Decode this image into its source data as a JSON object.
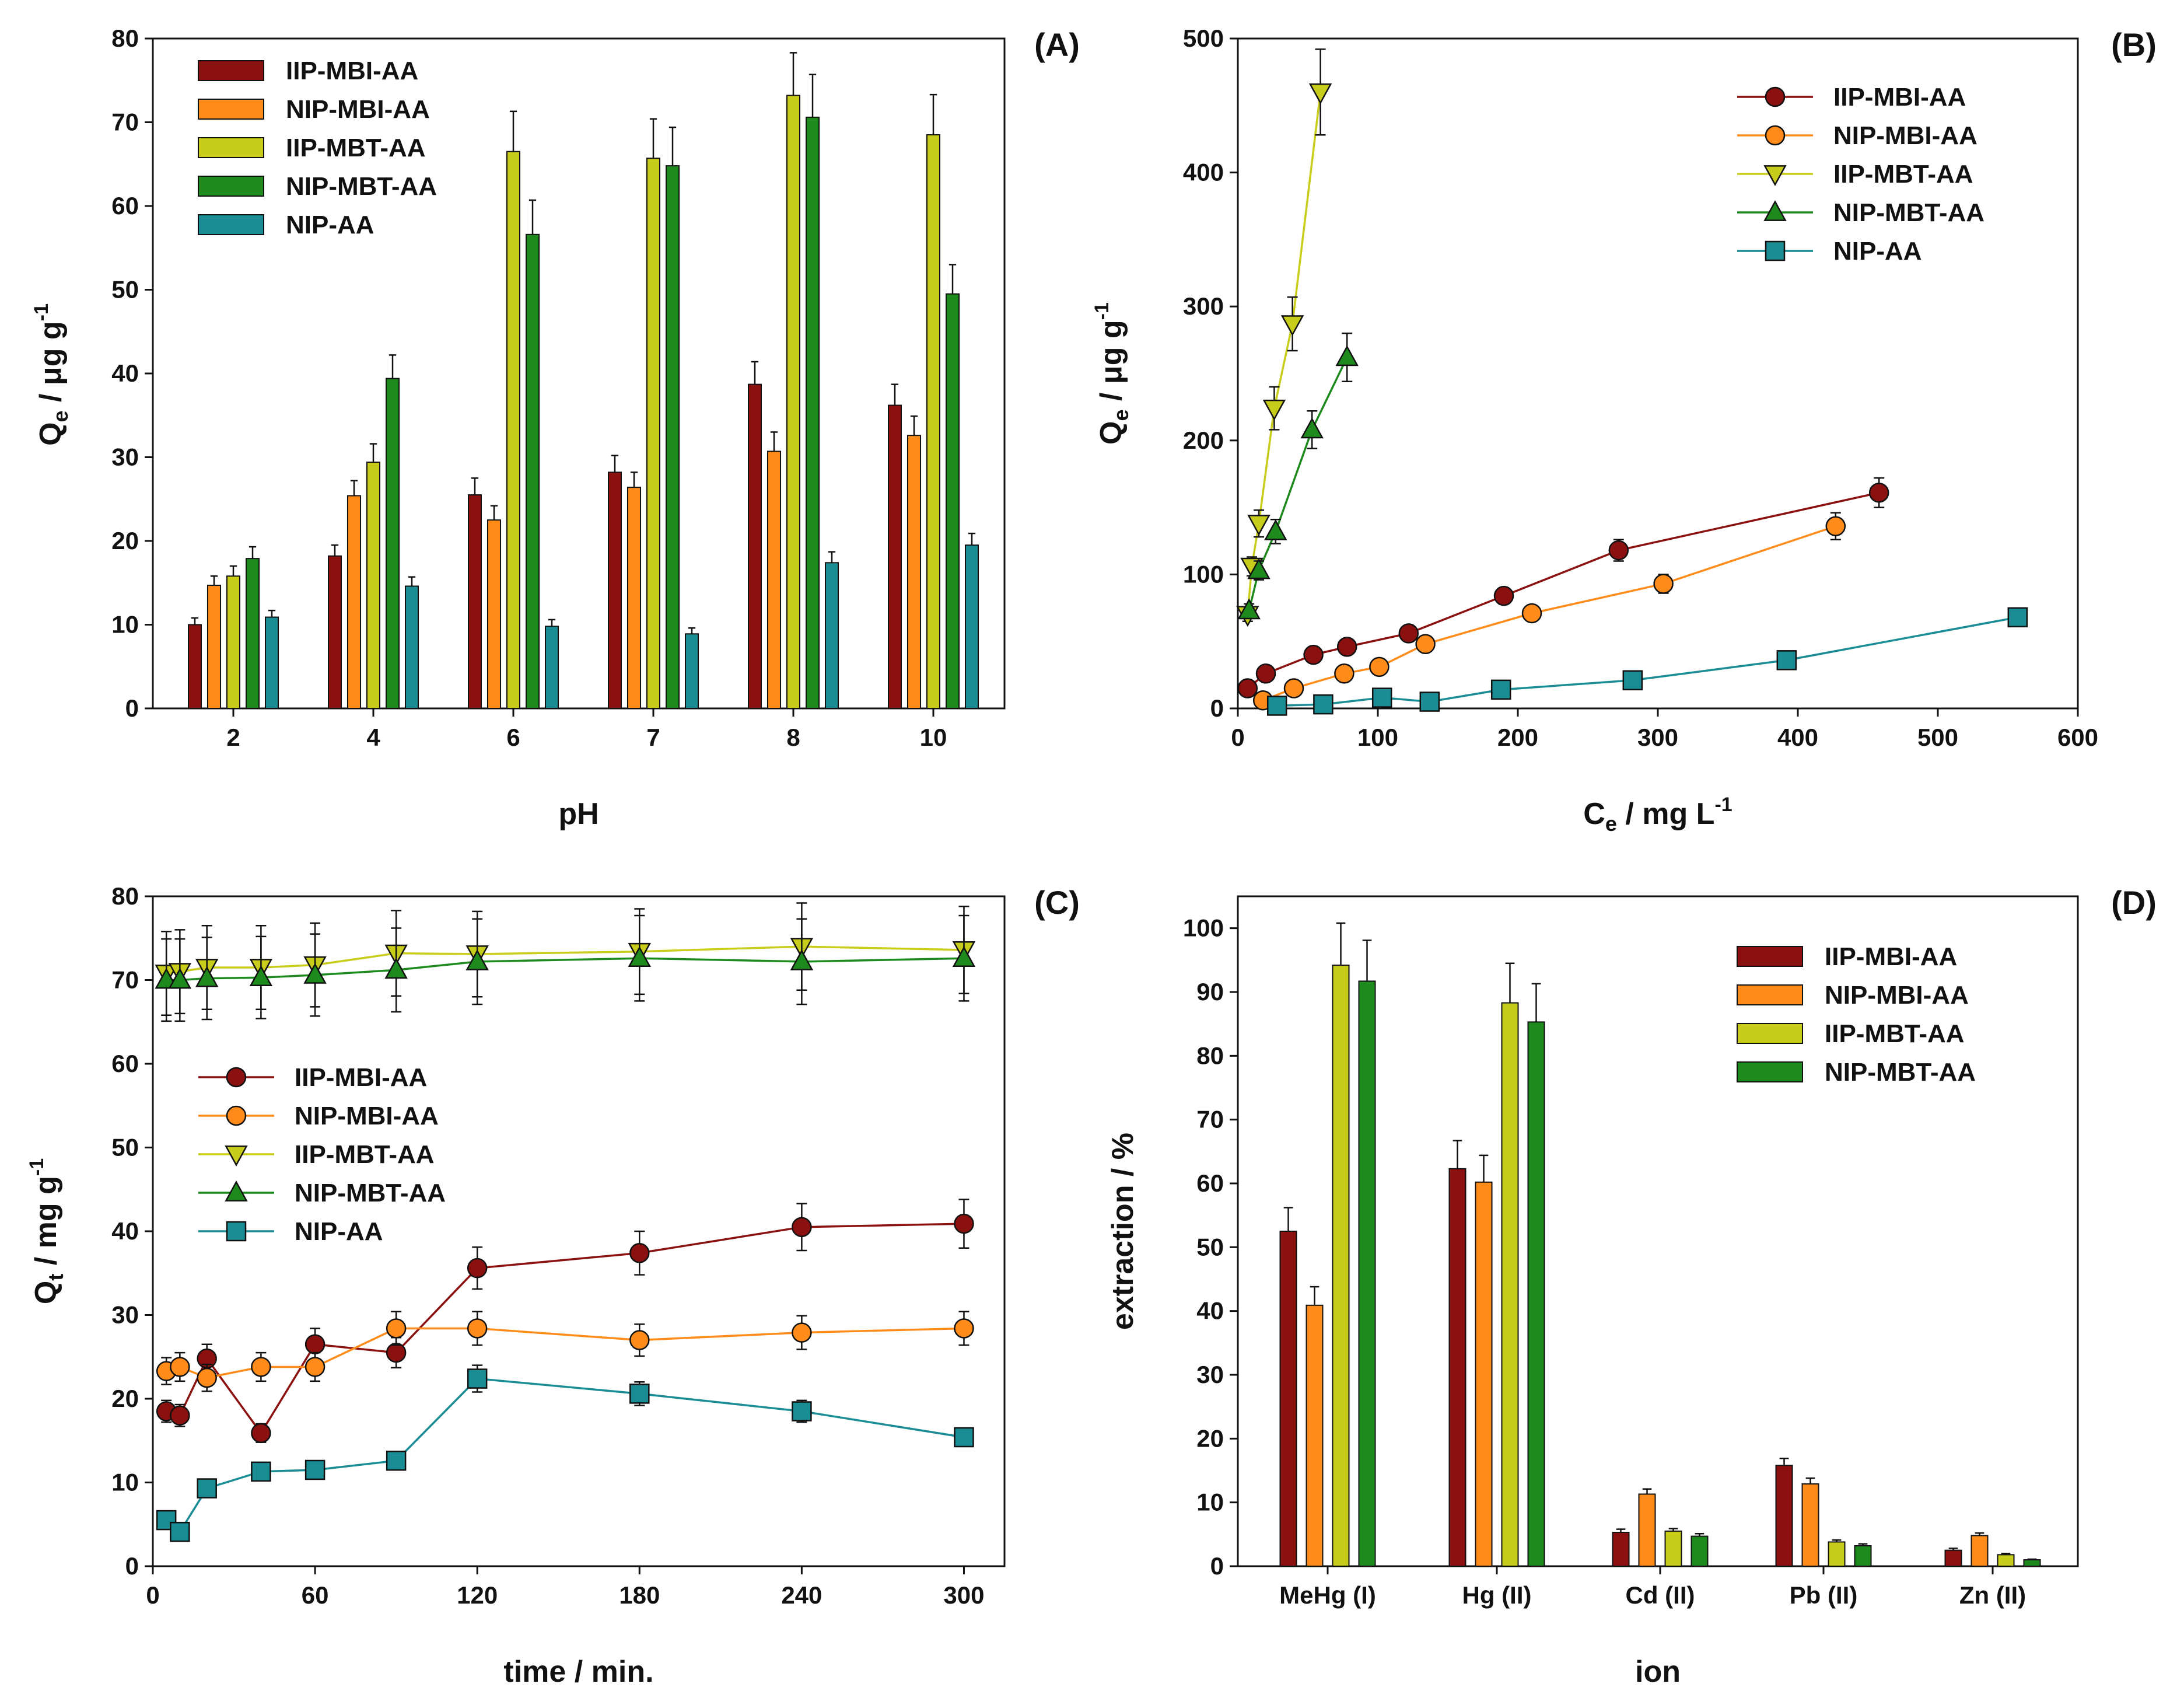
{
  "colors": {
    "IIP-MBI-AA": "#8b1010",
    "NIP-MBI-AA": "#ff8c1a",
    "IIP-MBT-AA": "#c8cc1a",
    "NIP-MBT-AA": "#1e8a1e",
    "NIP-AA": "#1a8c94"
  },
  "chart_data": [
    {
      "panel": "(A)",
      "type": "bar",
      "xlabel": "pH",
      "ylabel": "Qe / μg g-1",
      "ylabel_parts": {
        "main": "Q",
        "sub": "e",
        "rest": " / μg g",
        "sup": "-1"
      },
      "ylim": [
        0,
        80
      ],
      "yticks": [
        0,
        10,
        20,
        30,
        40,
        50,
        60,
        70,
        80
      ],
      "categories": [
        "2",
        "4",
        "6",
        "7",
        "8",
        "10"
      ],
      "legend_position": "top-left",
      "series": [
        {
          "name": "IIP-MBI-AA",
          "values": [
            10,
            18.2,
            25.5,
            28.2,
            38.7,
            36.2
          ],
          "errors": [
            0.8,
            1.3,
            2.0,
            2.0,
            2.7,
            2.5
          ]
        },
        {
          "name": "NIP-MBI-AA",
          "values": [
            14.7,
            25.4,
            22.5,
            26.4,
            30.7,
            32.6
          ],
          "errors": [
            1.1,
            1.8,
            1.7,
            1.8,
            2.3,
            2.3
          ]
        },
        {
          "name": "IIP-MBT-AA",
          "values": [
            15.8,
            29.4,
            66.5,
            65.7,
            73.2,
            68.5
          ],
          "errors": [
            1.2,
            2.2,
            4.8,
            4.7,
            5.1,
            4.8
          ]
        },
        {
          "name": "NIP-MBT-AA",
          "values": [
            17.9,
            39.4,
            56.6,
            64.8,
            70.6,
            49.5
          ],
          "errors": [
            1.4,
            2.8,
            4.1,
            4.6,
            5.1,
            3.5
          ]
        },
        {
          "name": "NIP-AA",
          "values": [
            10.9,
            14.6,
            9.8,
            8.9,
            17.4,
            19.5
          ],
          "errors": [
            0.8,
            1.1,
            0.8,
            0.7,
            1.3,
            1.4
          ]
        }
      ]
    },
    {
      "panel": "(B)",
      "type": "line",
      "xlabel": "Ce / mg L-1",
      "xlabel_parts": {
        "main": "C",
        "sub": "e",
        "rest": " / mg L",
        "sup": "-1"
      },
      "ylabel": "Qe / μg g-1",
      "ylabel_parts": {
        "main": "Q",
        "sub": "e",
        "rest": " / μg g",
        "sup": "-1"
      },
      "xlim": [
        0,
        600
      ],
      "ylim": [
        0,
        500
      ],
      "xticks": [
        0,
        100,
        200,
        300,
        400,
        500,
        600
      ],
      "yticks": [
        0,
        100,
        200,
        300,
        400,
        500
      ],
      "legend_position": "top-right",
      "series": [
        {
          "name": "IIP-MBI-AA",
          "marker": "circle",
          "points": [
            [
              7,
              15
            ],
            [
              20,
              26
            ],
            [
              54,
              40
            ],
            [
              78,
              46
            ],
            [
              122,
              56
            ],
            [
              190,
              84
            ],
            [
              272,
              118
            ],
            [
              458,
              161
            ]
          ],
          "errors": [
            3,
            3,
            4,
            4,
            5,
            6,
            8,
            11
          ]
        },
        {
          "name": "NIP-MBI-AA",
          "marker": "circle",
          "points": [
            [
              18,
              6
            ],
            [
              40,
              15
            ],
            [
              76,
              26
            ],
            [
              101,
              31
            ],
            [
              134,
              48
            ],
            [
              210,
              71
            ],
            [
              304,
              93
            ],
            [
              427,
              136
            ]
          ],
          "errors": [
            2,
            2,
            3,
            3,
            4,
            5,
            7,
            10
          ]
        },
        {
          "name": "IIP-MBT-AA",
          "marker": "triangle-down",
          "points": [
            [
              7,
              70
            ],
            [
              10,
              106
            ],
            [
              15,
              138
            ],
            [
              26,
              224
            ],
            [
              39,
              287
            ],
            [
              59,
              460
            ]
          ],
          "errors": [
            5,
            7,
            10,
            16,
            20,
            32
          ]
        },
        {
          "name": "NIP-MBT-AA",
          "marker": "triangle-up",
          "points": [
            [
              8,
              73
            ],
            [
              15,
              103
            ],
            [
              27,
              132
            ],
            [
              53,
              208
            ],
            [
              78,
              262
            ]
          ],
          "errors": [
            5,
            7,
            9,
            14,
            18
          ]
        },
        {
          "name": "NIP-AA",
          "marker": "square",
          "points": [
            [
              28,
              2
            ],
            [
              61,
              3
            ],
            [
              103,
              8
            ],
            [
              137,
              5
            ],
            [
              188,
              14
            ],
            [
              282,
              21
            ],
            [
              392,
              36
            ],
            [
              557,
              68
            ]
          ],
          "errors": [
            1,
            1,
            1,
            1,
            2,
            2,
            3,
            5
          ]
        }
      ]
    },
    {
      "panel": "(C)",
      "type": "line",
      "xlabel": "time / min.",
      "ylabel": "Qt / mg g-1",
      "ylabel_parts": {
        "main": "Q",
        "sub": "t",
        "rest": " / mg g",
        "sup": "-1"
      },
      "xlim": [
        0,
        315
      ],
      "ylim": [
        0,
        80
      ],
      "xticks": [
        0,
        60,
        120,
        180,
        240,
        300
      ],
      "yticks": [
        0,
        10,
        20,
        30,
        40,
        50,
        60,
        70,
        80
      ],
      "legend_position": "middle-left",
      "series": [
        {
          "name": "IIP-MBI-AA",
          "marker": "circle",
          "points": [
            [
              5,
              18.5
            ],
            [
              10,
              18
            ],
            [
              20,
              24.8
            ],
            [
              40,
              15.9
            ],
            [
              60,
              26.5
            ],
            [
              90,
              25.5
            ],
            [
              120,
              35.6
            ],
            [
              180,
              37.4
            ],
            [
              240,
              40.5
            ],
            [
              300,
              40.9
            ]
          ],
          "errors": [
            1.3,
            1.3,
            1.7,
            1.1,
            1.9,
            1.8,
            2.5,
            2.6,
            2.8,
            2.9
          ]
        },
        {
          "name": "NIP-MBI-AA",
          "marker": "circle",
          "points": [
            [
              5,
              23.3
            ],
            [
              10,
              23.8
            ],
            [
              20,
              22.5
            ],
            [
              40,
              23.8
            ],
            [
              60,
              23.8
            ],
            [
              90,
              28.4
            ],
            [
              120,
              28.4
            ],
            [
              180,
              27
            ],
            [
              240,
              27.9
            ],
            [
              300,
              28.4
            ]
          ],
          "errors": [
            1.6,
            1.7,
            1.6,
            1.7,
            1.7,
            2.0,
            2.0,
            1.9,
            2.0,
            2.0
          ]
        },
        {
          "name": "IIP-MBT-AA",
          "marker": "triangle-down",
          "points": [
            [
              5,
              70.8
            ],
            [
              10,
              71
            ],
            [
              20,
              71.5
            ],
            [
              40,
              71.5
            ],
            [
              60,
              71.8
            ],
            [
              90,
              73.2
            ],
            [
              120,
              73.1
            ],
            [
              180,
              73.4
            ],
            [
              240,
              74
            ],
            [
              300,
              73.6
            ]
          ],
          "errors": [
            5,
            5,
            5,
            5,
            5,
            5.1,
            5.1,
            5.1,
            5.2,
            5.2
          ]
        },
        {
          "name": "NIP-MBT-AA",
          "marker": "triangle-up",
          "points": [
            [
              5,
              70
            ],
            [
              10,
              70
            ],
            [
              20,
              70.2
            ],
            [
              40,
              70.3
            ],
            [
              60,
              70.6
            ],
            [
              90,
              71.2
            ],
            [
              120,
              72.2
            ],
            [
              180,
              72.6
            ],
            [
              240,
              72.2
            ],
            [
              300,
              72.6
            ]
          ],
          "errors": [
            4.9,
            4.9,
            4.9,
            4.9,
            4.9,
            5.0,
            5.1,
            5.1,
            5.1,
            5.1
          ]
        },
        {
          "name": "NIP-AA",
          "marker": "square",
          "points": [
            [
              5,
              5.5
            ],
            [
              10,
              4.1
            ],
            [
              20,
              9.3
            ],
            [
              40,
              11.3
            ],
            [
              60,
              11.5
            ],
            [
              90,
              12.6
            ],
            [
              120,
              22.4
            ],
            [
              180,
              20.6
            ],
            [
              240,
              18.5
            ],
            [
              300,
              15.4
            ]
          ],
          "errors": [
            0.4,
            0.3,
            0.7,
            0.8,
            0.8,
            0.9,
            1.6,
            1.4,
            1.3,
            1.1
          ]
        }
      ]
    },
    {
      "panel": "(D)",
      "type": "bar",
      "xlabel": "ion",
      "ylabel": "extraction / %",
      "ylim": [
        0,
        105
      ],
      "yticks": [
        0,
        10,
        20,
        30,
        40,
        50,
        60,
        70,
        80,
        90,
        100
      ],
      "categories": [
        "MeHg (I)",
        "Hg (II)",
        "Cd (II)",
        "Pb (II)",
        "Zn (II)"
      ],
      "legend_position": "top-right",
      "series": [
        {
          "name": "IIP-MBI-AA",
          "values": [
            52.5,
            62.3,
            5.3,
            15.8,
            2.5
          ],
          "errors": [
            3.7,
            4.4,
            0.5,
            1.1,
            0.3
          ]
        },
        {
          "name": "NIP-MBI-AA",
          "values": [
            40.9,
            60.2,
            11.3,
            12.9,
            4.8
          ],
          "errors": [
            2.9,
            4.2,
            0.8,
            0.9,
            0.4
          ]
        },
        {
          "name": "IIP-MBT-AA",
          "values": [
            94.2,
            88.3,
            5.5,
            3.8,
            1.8
          ],
          "errors": [
            6.6,
            6.2,
            0.4,
            0.3,
            0.2
          ]
        },
        {
          "name": "NIP-MBT-AA",
          "values": [
            91.7,
            85.3,
            4.7,
            3.2,
            1.0
          ],
          "errors": [
            6.4,
            6.0,
            0.4,
            0.3,
            0.1
          ]
        }
      ]
    }
  ]
}
